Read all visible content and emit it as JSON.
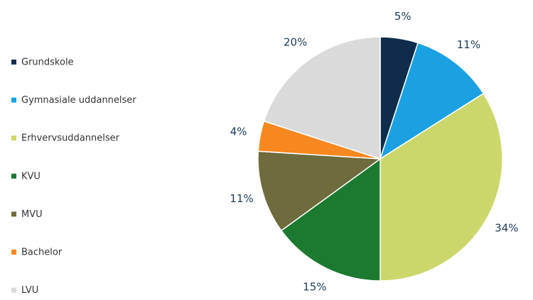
{
  "chart_data": {
    "type": "pie",
    "categories": [
      "Grundskole",
      "Gymnasiale uddannelser",
      "Erhvervsuddannelser",
      "KVU",
      "MVU",
      "Bachelor",
      "LVU"
    ],
    "values": [
      5,
      11,
      34,
      15,
      11,
      4,
      20
    ],
    "value_labels": [
      "5%",
      "11%",
      "34%",
      "15%",
      "11%",
      "4%",
      "20%"
    ],
    "colors": [
      "#0e2d4c",
      "#1ba1e2",
      "#cbd76a",
      "#1c7a30",
      "#6e6b3c",
      "#f7871f",
      "#dadada"
    ],
    "legend": "left"
  }
}
